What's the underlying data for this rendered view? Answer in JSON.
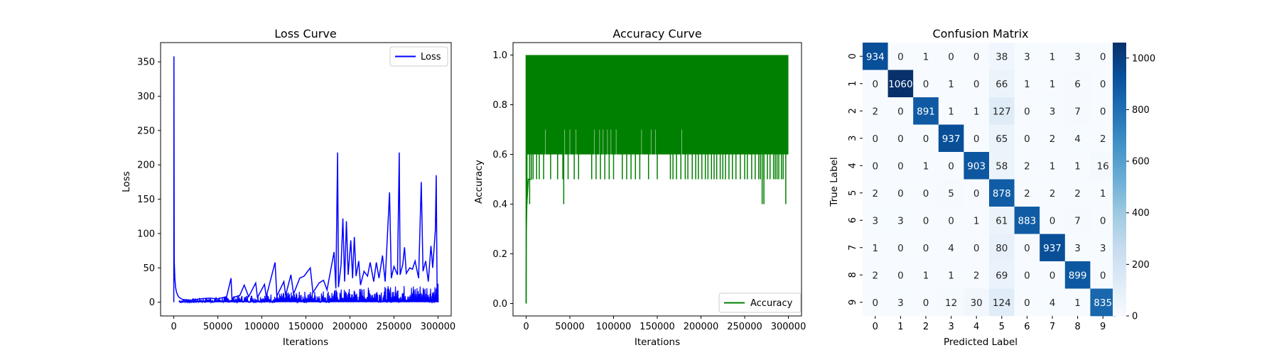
{
  "chart_data": [
    {
      "type": "line",
      "title": "Loss Curve",
      "xlabel": "Iterations",
      "ylabel": "Loss",
      "xlim": [
        -15000,
        315000
      ],
      "ylim": [
        -20,
        378
      ],
      "xticks": [
        0,
        50000,
        100000,
        150000,
        200000,
        250000,
        300000
      ],
      "xtick_labels": [
        "0",
        "50000",
        "100000",
        "150000",
        "200000",
        "250000",
        "300000"
      ],
      "yticks": [
        0,
        50,
        100,
        150,
        200,
        250,
        300,
        350
      ],
      "ytick_labels": [
        "0",
        "50",
        "100",
        "150",
        "200",
        "250",
        "300",
        "350"
      ],
      "legend_position": "upper right",
      "grid": false,
      "series": [
        {
          "name": "Loss",
          "color": "#0000ff",
          "points": [
            [
              0,
              0
            ],
            [
              150,
              358
            ],
            [
              500,
              60
            ],
            [
              1200,
              35
            ],
            [
              2000,
              22
            ],
            [
              3000,
              15
            ],
            [
              4500,
              10
            ],
            [
              6000,
              7
            ],
            [
              10000,
              4
            ],
            [
              20000,
              3
            ],
            [
              30000,
              5
            ],
            [
              40000,
              6
            ],
            [
              50000,
              5
            ],
            [
              60000,
              8
            ],
            [
              65000,
              35
            ],
            [
              66000,
              6
            ],
            [
              75000,
              10
            ],
            [
              80000,
              25
            ],
            [
              85000,
              8
            ],
            [
              93000,
              28
            ],
            [
              95000,
              7
            ],
            [
              103000,
              26
            ],
            [
              105000,
              8
            ],
            [
              115000,
              58
            ],
            [
              117000,
              9
            ],
            [
              125000,
              30
            ],
            [
              127000,
              10
            ],
            [
              133000,
              40
            ],
            [
              136000,
              12
            ],
            [
              143000,
              35
            ],
            [
              148000,
              38
            ],
            [
              152000,
              45
            ],
            [
              155000,
              50
            ],
            [
              158000,
              14
            ],
            [
              165000,
              28
            ],
            [
              170000,
              32
            ],
            [
              174000,
              18
            ],
            [
              182000,
              73
            ],
            [
              184000,
              20
            ],
            [
              186000,
              218
            ],
            [
              187000,
              22
            ],
            [
              190000,
              55
            ],
            [
              192000,
              122
            ],
            [
              194000,
              30
            ],
            [
              196000,
              118
            ],
            [
              198000,
              40
            ],
            [
              201000,
              90
            ],
            [
              203000,
              35
            ],
            [
              205000,
              95
            ],
            [
              207000,
              38
            ],
            [
              210000,
              60
            ],
            [
              212000,
              25
            ],
            [
              216000,
              45
            ],
            [
              220000,
              38
            ],
            [
              223000,
              58
            ],
            [
              227000,
              30
            ],
            [
              230000,
              58
            ],
            [
              233000,
              35
            ],
            [
              237000,
              68
            ],
            [
              240000,
              30
            ],
            [
              245000,
              160
            ],
            [
              247000,
              35
            ],
            [
              250000,
              52
            ],
            [
              254000,
              40
            ],
            [
              256000,
              218
            ],
            [
              257000,
              40
            ],
            [
              260000,
              55
            ],
            [
              262000,
              80
            ],
            [
              264000,
              42
            ],
            [
              268000,
              50
            ],
            [
              271000,
              48
            ],
            [
              274000,
              60
            ],
            [
              278000,
              35
            ],
            [
              281000,
              175
            ],
            [
              283000,
              45
            ],
            [
              286000,
              60
            ],
            [
              289000,
              30
            ],
            [
              292000,
              82
            ],
            [
              294000,
              50
            ],
            [
              297000,
              105
            ],
            [
              298000,
              185
            ],
            [
              299000,
              15
            ],
            [
              300000,
              0
            ]
          ]
        }
      ]
    },
    {
      "type": "line",
      "title": "Accuracy Curve",
      "xlabel": "Iterations",
      "ylabel": "Accuracy",
      "xlim": [
        -15000,
        315000
      ],
      "ylim": [
        -0.05,
        1.05
      ],
      "xticks": [
        0,
        50000,
        100000,
        150000,
        200000,
        250000,
        300000
      ],
      "xtick_labels": [
        "0",
        "50000",
        "100000",
        "150000",
        "200000",
        "250000",
        "300000"
      ],
      "yticks": [
        0.0,
        0.2,
        0.4,
        0.6,
        0.8,
        1.0
      ],
      "ytick_labels": [
        "0.0",
        "0.2",
        "0.4",
        "0.6",
        "0.8",
        "1.0"
      ],
      "legend_position": "lower right",
      "grid": false,
      "series": [
        {
          "name": "Accuracy",
          "color": "#008000",
          "x_range": [
            0,
            300000
          ],
          "band": [
            0.6,
            1.0
          ],
          "initial_points": [
            [
              0,
              0.0
            ],
            [
              300,
              0.3
            ],
            [
              800,
              0.4
            ],
            [
              2500,
              0.5
            ],
            [
              6000,
              0.5
            ]
          ],
          "dips_to_0_5": [
            4000,
            8000,
            12000,
            15000,
            20000,
            28000,
            36000,
            42000,
            48000,
            55000,
            60000,
            75000,
            80000,
            85000,
            90000,
            95000,
            100000,
            110000,
            115000,
            120000,
            125000,
            130000,
            140000,
            150000,
            165000,
            168000,
            172000,
            177000,
            182000,
            185000,
            190000,
            194000,
            197000,
            201000,
            205000,
            208000,
            212000,
            215000,
            218000,
            222000,
            225000,
            228000,
            232000,
            236000,
            240000,
            245000,
            250000,
            253000,
            258000,
            262000,
            266000,
            268000,
            272000,
            276000,
            279000,
            283000,
            285000,
            287000,
            289000,
            292000,
            294000
          ],
          "dips_to_0_4": [
            1000,
            4000,
            43000,
            270000,
            272000,
            297000
          ],
          "peaks_to_0_7": [
            22000,
            44000,
            50000,
            57000,
            78000,
            84000,
            88000,
            93000,
            97000,
            103000,
            132000,
            143000,
            148000,
            178000
          ]
        }
      ]
    },
    {
      "type": "heatmap",
      "title": "Confusion Matrix",
      "xlabel": "Predicted Label",
      "ylabel": "True Label",
      "x_categories": [
        "0",
        "1",
        "2",
        "3",
        "4",
        "5",
        "6",
        "7",
        "8",
        "9"
      ],
      "y_categories": [
        "0",
        "1",
        "2",
        "3",
        "4",
        "5",
        "6",
        "7",
        "8",
        "9"
      ],
      "colormap": "Blues",
      "colorbar_range": [
        0,
        1060
      ],
      "colorbar_ticks": [
        0,
        200,
        400,
        600,
        800,
        1000
      ],
      "colorbar_tick_labels": [
        "0",
        "200",
        "400",
        "600",
        "800",
        "1000"
      ],
      "values": [
        [
          934,
          0,
          1,
          0,
          0,
          38,
          3,
          1,
          3,
          0
        ],
        [
          0,
          1060,
          0,
          1,
          0,
          66,
          1,
          1,
          6,
          0
        ],
        [
          2,
          0,
          891,
          1,
          1,
          127,
          0,
          3,
          7,
          0
        ],
        [
          0,
          0,
          0,
          937,
          0,
          65,
          0,
          2,
          4,
          2
        ],
        [
          0,
          0,
          1,
          0,
          903,
          58,
          2,
          1,
          1,
          16
        ],
        [
          2,
          0,
          0,
          5,
          0,
          878,
          2,
          2,
          2,
          1
        ],
        [
          3,
          3,
          0,
          0,
          1,
          61,
          883,
          0,
          7,
          0
        ],
        [
          1,
          0,
          0,
          4,
          0,
          80,
          0,
          937,
          3,
          3
        ],
        [
          2,
          0,
          1,
          1,
          2,
          69,
          0,
          0,
          899,
          0
        ],
        [
          0,
          3,
          0,
          12,
          30,
          124,
          0,
          4,
          1,
          835
        ]
      ]
    }
  ]
}
